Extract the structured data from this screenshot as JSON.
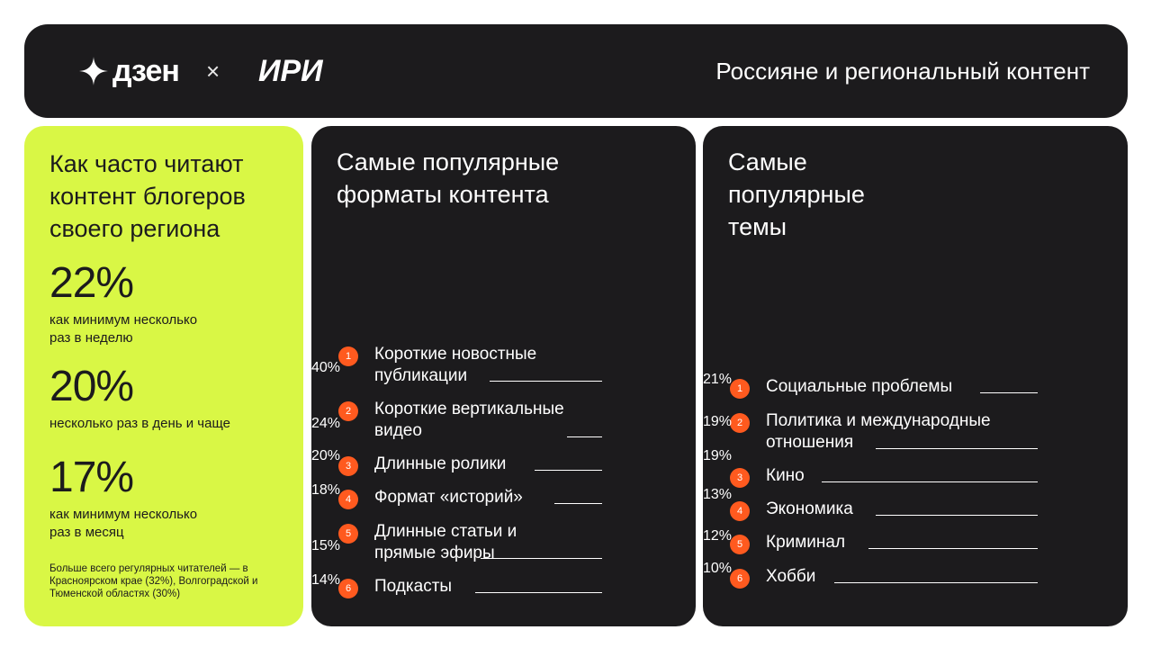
{
  "header": {
    "logo_dzen": "дзен",
    "times": "×",
    "logo_iri": "ИРИ",
    "title": "Россияне и региональный контент"
  },
  "reading": {
    "title": "Как часто читают контент блогеров своего региона",
    "stats": [
      {
        "value": "22%",
        "desc": "как минимум несколько раз в неделю"
      },
      {
        "value": "20%",
        "desc": "несколько раз в день и чаще"
      },
      {
        "value": "17%",
        "desc": "как минимум несколько раз в месяц"
      }
    ],
    "footnote": "Больше всего регулярных читателей — в Красноярском крае (32%), Волгоградской и Тюменской областях (30%)"
  },
  "chart_data": [
    {
      "type": "table",
      "title": "Самые популярные форматы контента",
      "categories": [
        "Короткие новостные публикации",
        "Короткие вертикальные видео",
        "Длинные ролики",
        "Формат «историй»",
        "Длинные статьи и прямые эфиры",
        "Подкасты"
      ],
      "values": [
        40,
        24,
        20,
        18,
        15,
        14
      ],
      "numbers": [
        "1",
        "2",
        "3",
        "4",
        "5",
        "6"
      ],
      "labels": [
        "40%",
        "24%",
        "20%",
        "18%",
        "15%",
        "14%"
      ]
    },
    {
      "type": "table",
      "title": "Самые популярные темы",
      "categories": [
        "Социальные проблемы",
        "Политика и международные отношения",
        "Кино",
        "Экономика",
        "Криминал",
        "Хобби"
      ],
      "values": [
        21,
        19,
        19,
        13,
        12,
        10
      ],
      "numbers": [
        "1",
        "2",
        "3",
        "4",
        "5",
        "6"
      ],
      "labels": [
        "21%",
        "19%",
        "19%",
        "13%",
        "12%",
        "10%"
      ]
    }
  ],
  "colors": {
    "dark": "#1c1b1d",
    "green": "#d9f745",
    "accent": "#ff5a1f"
  }
}
